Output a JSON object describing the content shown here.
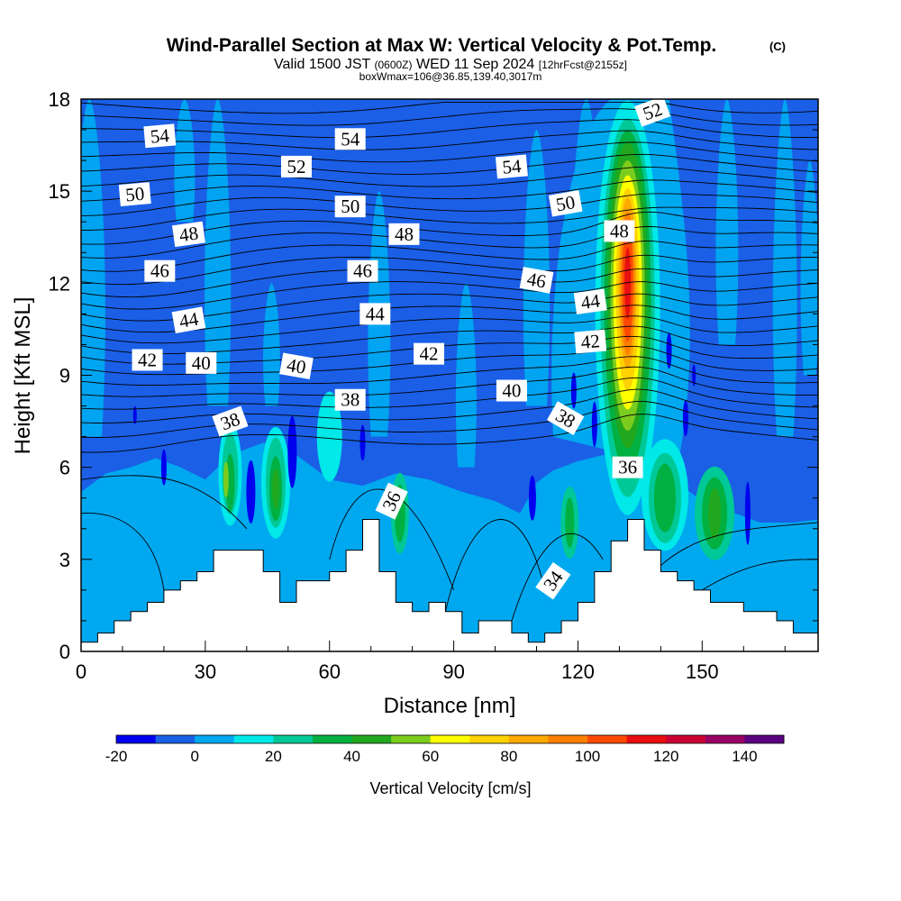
{
  "chart_data": {
    "type": "heatmap",
    "title": "Wind-Parallel Section at Max W: Vertical Velocity & Pot.Temp.",
    "title_mark": "(C)",
    "subtitle_parts": [
      "Valid 1500 JST",
      "(0600Z)",
      "WED 11 Sep 2024",
      "[12hrFcst@2155z]"
    ],
    "subtitle2": "boxWmax=106@36.85,139.40,3017m",
    "xlabel": "Distance [nm]",
    "ylabel": "Height [Kft MSL]",
    "xlim": [
      0,
      178
    ],
    "ylim": [
      0,
      18
    ],
    "x_ticks": [
      0,
      30,
      60,
      90,
      120,
      150
    ],
    "y_ticks": [
      0,
      3,
      6,
      9,
      12,
      15,
      18
    ],
    "colorbar": {
      "label": "Vertical Velocity [cm/s]",
      "tick_labels": [
        "-20",
        "0",
        "20",
        "40",
        "60",
        "80",
        "100",
        "120",
        "140"
      ],
      "levels": [
        -20,
        -10,
        0,
        10,
        20,
        30,
        40,
        50,
        60,
        70,
        80,
        90,
        100,
        110,
        120,
        130,
        140,
        150
      ],
      "colors": [
        "#0000ee",
        "#1a5fe6",
        "#00a8f0",
        "#00e8e8",
        "#00c896",
        "#00b040",
        "#22a81e",
        "#7ccc1e",
        "#ffff00",
        "#ffd200",
        "#ffaa00",
        "#ff8000",
        "#ff4a00",
        "#e81010",
        "#cc0033",
        "#990066",
        "#5a0080"
      ]
    },
    "theta_contour_labels": [
      "54",
      "54",
      "52",
      "52",
      "54",
      "50",
      "50",
      "50",
      "48",
      "48",
      "48",
      "46",
      "46",
      "46",
      "44",
      "44",
      "44",
      "42",
      "42",
      "42",
      "40",
      "40",
      "40",
      "38",
      "38",
      "38",
      "36",
      "36",
      "34"
    ],
    "theta_levels": [
      34,
      36,
      38,
      40,
      42,
      44,
      46,
      48,
      50,
      52,
      54
    ],
    "terrain_kft": [
      [
        0,
        0.3
      ],
      [
        4,
        0.6
      ],
      [
        8,
        1.0
      ],
      [
        12,
        1.3
      ],
      [
        16,
        1.6
      ],
      [
        20,
        2.0
      ],
      [
        24,
        2.3
      ],
      [
        28,
        2.6
      ],
      [
        32,
        3.3
      ],
      [
        40,
        3.3
      ],
      [
        44,
        2.6
      ],
      [
        48,
        1.6
      ],
      [
        52,
        2.3
      ],
      [
        56,
        2.3
      ],
      [
        60,
        2.6
      ],
      [
        64,
        3.3
      ],
      [
        68,
        4.3
      ],
      [
        72,
        2.6
      ],
      [
        76,
        1.6
      ],
      [
        80,
        1.3
      ],
      [
        84,
        1.6
      ],
      [
        88,
        1.3
      ],
      [
        92,
        0.6
      ],
      [
        96,
        1.0
      ],
      [
        100,
        1.0
      ],
      [
        104,
        0.6
      ],
      [
        108,
        0.3
      ],
      [
        112,
        0.6
      ],
      [
        116,
        1.0
      ],
      [
        120,
        1.6
      ],
      [
        124,
        2.6
      ],
      [
        128,
        3.6
      ],
      [
        132,
        4.3
      ],
      [
        136,
        3.3
      ],
      [
        140,
        2.6
      ],
      [
        144,
        2.3
      ],
      [
        148,
        2.0
      ],
      [
        152,
        1.6
      ],
      [
        156,
        1.6
      ],
      [
        160,
        1.3
      ],
      [
        164,
        1.3
      ],
      [
        168,
        1.0
      ],
      [
        172,
        0.6
      ],
      [
        176,
        0.6
      ],
      [
        178,
        0.6
      ]
    ]
  }
}
